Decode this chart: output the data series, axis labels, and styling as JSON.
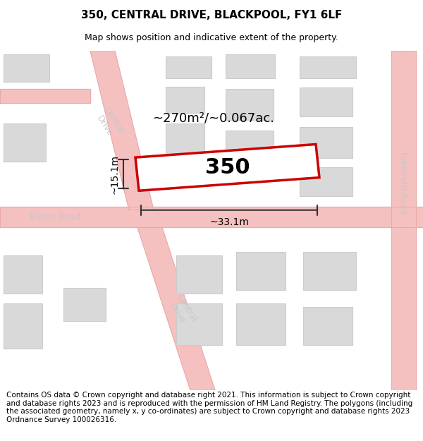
{
  "title": "350, CENTRAL DRIVE, BLACKPOOL, FY1 6LF",
  "subtitle": "Map shows position and indicative extent of the property.",
  "footer": "Contains OS data © Crown copyright and database right 2021. This information is subject to Crown copyright and database rights 2023 and is reproduced with the permission of HM Land Registry. The polygons (including the associated geometry, namely x, y co-ordinates) are subject to Crown copyright and database rights 2023 Ordnance Survey 100026316.",
  "map_bg": "#f2f2f2",
  "road_color": "#f5c0c0",
  "road_outline": "#e8a0a0",
  "building_color": "#d9d9d9",
  "building_outline": "#cccccc",
  "property_color": "#ffffff",
  "property_outline": "#cc0000",
  "property_label": "350",
  "area_text": "~270m²/~0.067ac.",
  "width_label": "~33.1m",
  "height_label": "~15.1m",
  "title_fontsize": 11,
  "subtitle_fontsize": 9,
  "footer_fontsize": 7.5,
  "road_label_color": "#c8c8c8",
  "dim_line_color": "#333333"
}
